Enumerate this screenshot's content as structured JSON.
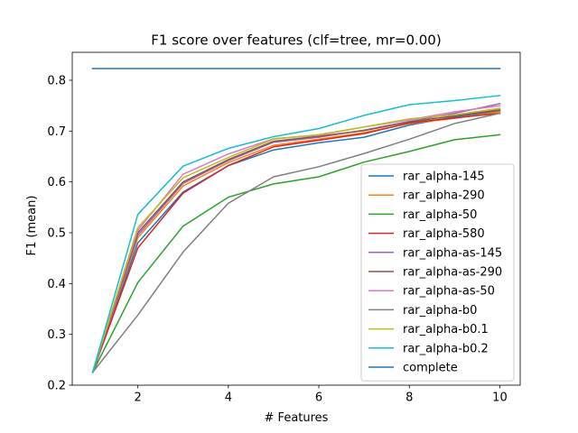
{
  "chart_data": {
    "type": "line",
    "title": "F1 score over features (clf=tree, mr=0.00)",
    "xlabel": "# Features",
    "ylabel": "F1 (mean)",
    "xlim": [
      0.55,
      10.45
    ],
    "ylim": [
      0.2,
      0.855
    ],
    "xticks": [
      2,
      4,
      6,
      8,
      10
    ],
    "yticks": [
      0.2,
      0.3,
      0.4,
      0.5,
      0.6,
      0.7,
      0.8
    ],
    "ytick_labels": [
      "0.2",
      "0.3",
      "0.4",
      "0.5",
      "0.6",
      "0.7",
      "0.8"
    ],
    "grid": false,
    "legend_position": "lower right",
    "x": [
      1,
      2,
      3,
      4,
      5,
      6,
      7,
      8,
      9,
      10
    ],
    "series": [
      {
        "name": "rar_alpha-145",
        "color": "#1f77b4",
        "values": [
          0.225,
          0.48,
          0.58,
          0.632,
          0.663,
          0.677,
          0.688,
          0.712,
          0.728,
          0.74
        ]
      },
      {
        "name": "rar_alpha-290",
        "color": "#ff7f0e",
        "values": [
          0.225,
          0.49,
          0.592,
          0.638,
          0.672,
          0.684,
          0.697,
          0.715,
          0.725,
          0.738
        ]
      },
      {
        "name": "rar_alpha-50",
        "color": "#2ca02c",
        "values": [
          0.225,
          0.402,
          0.513,
          0.57,
          0.596,
          0.61,
          0.639,
          0.66,
          0.683,
          0.693
        ]
      },
      {
        "name": "rar_alpha-580",
        "color": "#d62728",
        "values": [
          0.225,
          0.47,
          0.578,
          0.632,
          0.669,
          0.682,
          0.695,
          0.716,
          0.726,
          0.735
        ]
      },
      {
        "name": "rar_alpha-as-145",
        "color": "#9467bd",
        "values": [
          0.225,
          0.495,
          0.597,
          0.642,
          0.678,
          0.688,
          0.702,
          0.719,
          0.735,
          0.754
        ]
      },
      {
        "name": "rar_alpha-as-290",
        "color": "#8c564b",
        "values": [
          0.225,
          0.5,
          0.6,
          0.644,
          0.68,
          0.69,
          0.701,
          0.718,
          0.73,
          0.742
        ]
      },
      {
        "name": "rar_alpha-as-50",
        "color": "#e377c2",
        "values": [
          0.225,
          0.505,
          0.615,
          0.655,
          0.685,
          0.692,
          0.708,
          0.722,
          0.738,
          0.75
        ]
      },
      {
        "name": "rar_alpha-b0",
        "color": "#7f7f7f",
        "values": [
          0.225,
          0.338,
          0.462,
          0.558,
          0.61,
          0.63,
          0.656,
          0.684,
          0.715,
          0.735
        ]
      },
      {
        "name": "rar_alpha-b0.1",
        "color": "#bcbd22",
        "values": [
          0.225,
          0.51,
          0.608,
          0.648,
          0.684,
          0.693,
          0.708,
          0.724,
          0.732,
          0.745
        ]
      },
      {
        "name": "rar_alpha-b0.2",
        "color": "#17becf",
        "values": [
          0.225,
          0.536,
          0.631,
          0.666,
          0.689,
          0.705,
          0.731,
          0.752,
          0.76,
          0.77
        ]
      },
      {
        "name": "complete",
        "color": "#1f77b4",
        "values": [
          0.823,
          0.823,
          0.823,
          0.823,
          0.823,
          0.823,
          0.823,
          0.823,
          0.823,
          0.823
        ]
      }
    ]
  }
}
